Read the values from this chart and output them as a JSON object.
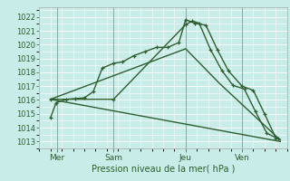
{
  "bg_color": "#c8ece8",
  "grid_color": "#ffffff",
  "line_color": "#2d5e2d",
  "xlabel": "Pression niveau de la mer( hPa )",
  "ylim": [
    1012.5,
    1022.7
  ],
  "yticks": [
    1013,
    1014,
    1015,
    1016,
    1017,
    1018,
    1019,
    1020,
    1021,
    1022
  ],
  "xlim": [
    -0.5,
    10.5
  ],
  "xtick_labels": [
    "Mer",
    "Sam",
    "Jeu",
    "Ven"
  ],
  "xtick_positions": [
    0.3,
    2.8,
    6.0,
    8.5
  ],
  "vlines": [
    0.3,
    2.8,
    6.0,
    8.5
  ],
  "lines": [
    {
      "x": [
        0.0,
        0.25,
        0.7,
        1.1,
        1.5,
        1.9,
        2.3,
        2.8,
        3.2,
        3.7,
        4.2,
        4.7,
        5.2,
        5.7,
        6.0,
        6.4,
        6.9,
        7.4,
        7.9,
        8.5,
        9.0,
        9.5,
        10.0
      ],
      "y": [
        1014.7,
        1015.8,
        1016.05,
        1016.1,
        1016.15,
        1016.6,
        1018.3,
        1018.65,
        1018.75,
        1019.2,
        1019.5,
        1019.8,
        1019.8,
        1020.15,
        1021.8,
        1021.55,
        1021.4,
        1019.65,
        1018.1,
        1017.0,
        1016.7,
        1015.0,
        1013.25
      ],
      "marker": true,
      "lw": 1.0
    },
    {
      "x": [
        0.0,
        2.8,
        6.0,
        6.3,
        6.6,
        7.1,
        7.6,
        8.1,
        8.6,
        9.1,
        9.6,
        10.1
      ],
      "y": [
        1016.05,
        1016.05,
        1021.45,
        1021.7,
        1021.55,
        1019.65,
        1018.15,
        1017.05,
        1016.8,
        1015.15,
        1013.6,
        1013.2
      ],
      "marker": true,
      "lw": 1.0
    },
    {
      "x": [
        0.0,
        10.2
      ],
      "y": [
        1016.05,
        1013.0
      ],
      "marker": false,
      "lw": 1.0
    },
    {
      "x": [
        0.0,
        6.0,
        7.5,
        10.2
      ],
      "y": [
        1016.05,
        1019.7,
        1017.2,
        1013.1
      ],
      "marker": false,
      "lw": 1.0
    }
  ]
}
